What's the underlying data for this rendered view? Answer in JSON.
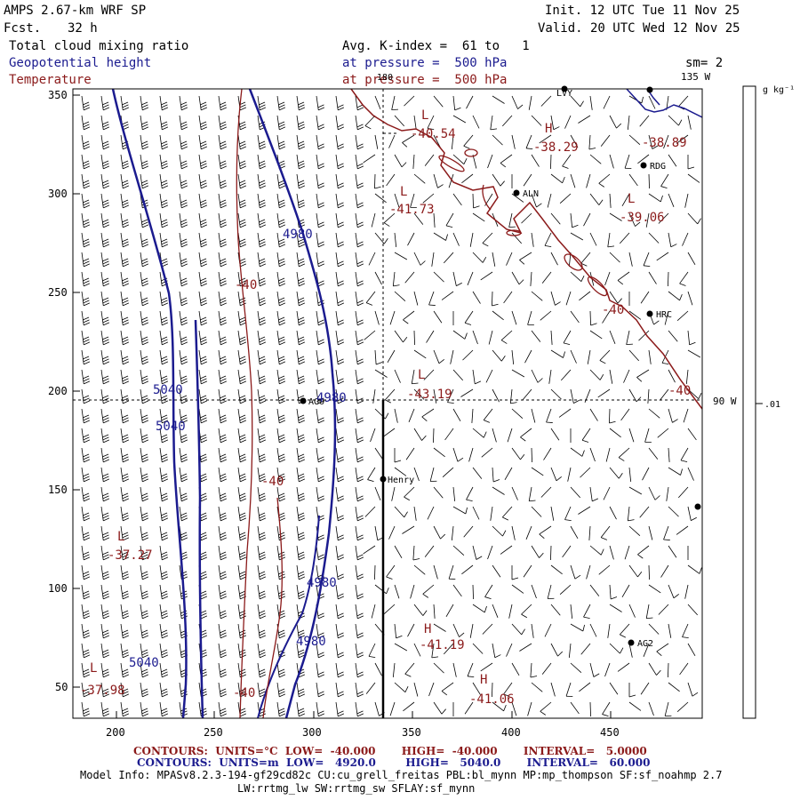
{
  "header": {
    "model": "AMPS 2.67-km WRF SP",
    "fcst_label": "Fcst.",
    "fcst_value": "32 h",
    "init": "Init. 12 UTC Tue 11 Nov 25",
    "valid": "Valid. 20 UTC Wed 12 Nov 25",
    "field1": "Total cloud mixing ratio",
    "field2": "Geopotential height",
    "field3": "Temperature",
    "avg": "Avg. K-index =  61 to   1",
    "pressure1": "at pressure =  500 hPa",
    "pressure2": "at pressure =  500 hPa",
    "sm": "sm= 2"
  },
  "axes": {
    "x_ticks": [
      "200",
      "250",
      "300",
      "350",
      "400",
      "450"
    ],
    "y_ticks": [
      "350",
      "300",
      "250",
      "200",
      "150",
      "100",
      "50"
    ]
  },
  "grid_labels": {
    "lon_180": "180",
    "lon_135w": "135 W",
    "lon_90w": "90 W"
  },
  "colorbar": {
    "units": "g kg⁻¹",
    "value": ".01"
  },
  "stations": [
    {
      "name": "LVY",
      "label": "LVY"
    },
    {
      "name": "RDG",
      "label": "RDG"
    },
    {
      "name": "ALN",
      "label": "ALN"
    },
    {
      "name": "HRC",
      "label": "HRC"
    },
    {
      "name": "AGO",
      "label": "AGO"
    },
    {
      "name": "Henry",
      "label": "Henry"
    },
    {
      "name": "AG2",
      "label": "AG2"
    }
  ],
  "temp_labels": {
    "l1": "L",
    "v1": "-40.54",
    "h1": "H",
    "v2": "-38.29",
    "v3": "-38.89",
    "l2": "L",
    "v4": "-41.73",
    "l3": "L",
    "v5": "-39.06",
    "c1": "-40",
    "c2": "-40",
    "c3": "-40",
    "l4": "L",
    "v6": "-43.19",
    "c4": "-40",
    "l5": "L",
    "v7": "-37.27",
    "h2": "H",
    "v8": "-41.19",
    "l6": "L",
    "v9": "-37.98",
    "h3": "H",
    "v10": "-41.06",
    "c5": "-40"
  },
  "height_labels": {
    "z1": "4980",
    "z2": "5040",
    "z3": "5040",
    "z4": "4980",
    "z5": "4980",
    "z6": "4980",
    "z7": "5040"
  },
  "footer": {
    "temp_contours": "CONTOURS:  UNITS=°C  LOW=  -40.000       HIGH=  -40.000       INTERVAL=   5.0000",
    "height_contours": "CONTOURS:  UNITS=m  LOW=   4920.0        HIGH=   5040.0       INTERVAL=   60.000",
    "model_info": "Model Info: MPASv8.2.3-194-gf29cd82c CU:cu_grell_freitas PBL:bl_mynn MP:mp_thompson SF:sf_noahmp 2.7",
    "physics": "LW:rrtmg_lw SW:rrtmg_sw SFLAY:sf_mynn"
  }
}
